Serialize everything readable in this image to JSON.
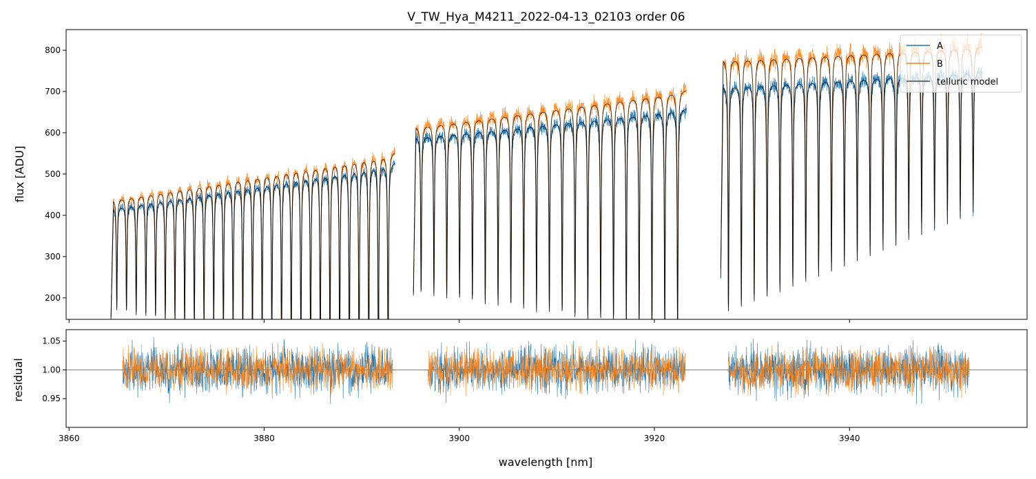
{
  "chart_data": [
    {
      "type": "line",
      "title": "V_TW_Hya_M4211_2022-04-13_02103  order 06",
      "xlabel": "",
      "ylabel": "flux [ADU]",
      "xlim": [
        3859.7,
        3958.2
      ],
      "ylim": [
        148,
        850
      ],
      "x_ticks": [
        3860,
        3880,
        3900,
        3920,
        3940
      ],
      "y_ticks": [
        200,
        300,
        400,
        500,
        600,
        700,
        800
      ],
      "y_tick_labels": [
        "200",
        "300",
        "400",
        "500",
        "600",
        "700",
        "800"
      ],
      "legend": {
        "position": "top-right",
        "entries": [
          "A",
          "B",
          "telluric model"
        ]
      },
      "segments": [
        {
          "x_start": 3864.3,
          "x_end": 3893.4,
          "lines": 29,
          "cont_A_start": 420,
          "cont_A_end": 530,
          "cont_B_start": 440,
          "cont_B_end": 555,
          "depth_start": 0.6,
          "depth_end": 1.0
        },
        {
          "x_start": 3895.3,
          "x_end": 3923.3,
          "lines": 21,
          "cont_A_start": 590,
          "cont_A_end": 660,
          "cont_B_start": 615,
          "cont_B_end": 705,
          "depth_start": 0.65,
          "depth_end": 0.83
        },
        {
          "x_start": 3926.8,
          "x_end": 3953.6,
          "lines": 20,
          "cont_A_start": 715,
          "cont_A_end": 750,
          "cont_B_start": 780,
          "cont_B_end": 810,
          "depth_start": 0.78,
          "depth_end": 0.46
        }
      ],
      "series": [
        {
          "name": "A",
          "color": "#1f77b4"
        },
        {
          "name": "B",
          "color": "#ff7f0e"
        },
        {
          "name": "telluric model",
          "color": "#000000"
        }
      ]
    },
    {
      "type": "line",
      "xlabel": "wavelength [nm]",
      "ylabel": "residual",
      "xlim": [
        3859.7,
        3958.2
      ],
      "ylim": [
        0.9,
        1.07
      ],
      "x_ticks": [
        3860,
        3880,
        3900,
        3920,
        3940
      ],
      "x_tick_labels": [
        "3860",
        "3880",
        "3900",
        "3920",
        "3940"
      ],
      "y_ticks": [
        0.95,
        1.0,
        1.05
      ],
      "y_tick_labels": [
        "0.95",
        "1.00",
        "1.05"
      ],
      "reference_line": 1.0,
      "segments": [
        {
          "x_start": 3865.5,
          "x_end": 3893.2
        },
        {
          "x_start": 3896.8,
          "x_end": 3923.2
        },
        {
          "x_start": 3927.6,
          "x_end": 3952.3
        }
      ],
      "series": [
        {
          "name": "A",
          "color": "#1f77b4"
        },
        {
          "name": "B",
          "color": "#ff7f0e"
        }
      ]
    }
  ]
}
